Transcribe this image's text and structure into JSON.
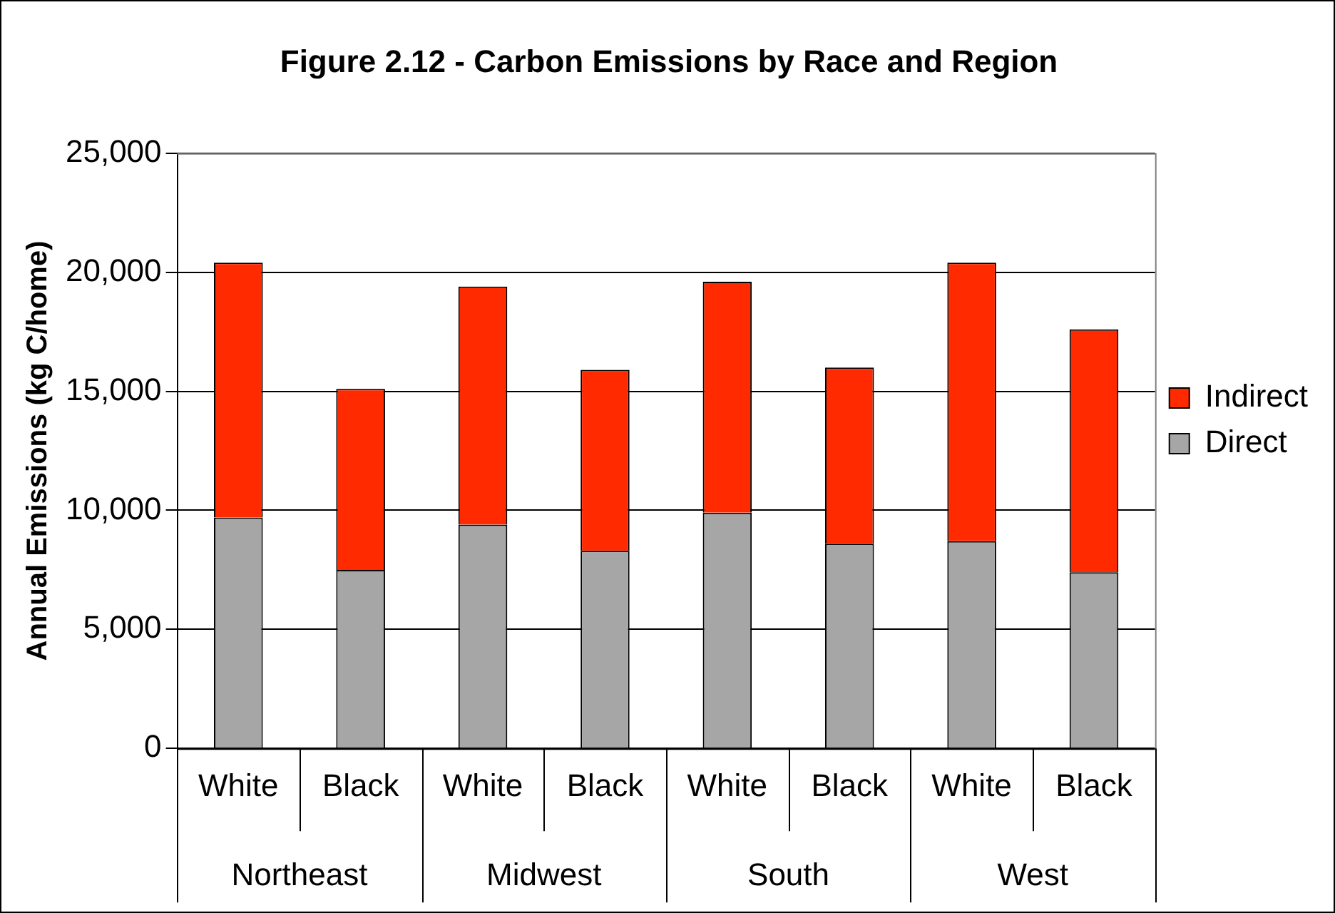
{
  "chart_data": {
    "type": "bar",
    "title": "Figure 2.12 - Carbon Emissions by Race and Region",
    "ylabel": "Annual Emissions (kg C/home)",
    "categories": [
      "White",
      "Black",
      "White",
      "Black",
      "White",
      "Black",
      "White",
      "Black"
    ],
    "annotations": [
      "Northeast",
      "Midwest",
      "South",
      "West"
    ],
    "stacked": true,
    "series": [
      {
        "name": "Direct",
        "color": "#a6a6a6",
        "values": [
          9700,
          7500,
          9400,
          8300,
          9900,
          8600,
          8700,
          7400
        ]
      },
      {
        "name": "Indirect",
        "color": "#ff2a00",
        "values": [
          10700,
          7600,
          10000,
          7600,
          9700,
          7400,
          11700,
          10200
        ]
      }
    ],
    "ylim": [
      0,
      25000
    ],
    "yticks": [
      0,
      {
        "value": 5000,
        "label": "5,000"
      },
      {
        "value": 10000,
        "label": "10,000"
      },
      {
        "value": 15000,
        "label": "15,000"
      },
      {
        "value": 20000,
        "label": "20,000"
      },
      {
        "value": 25000,
        "label": "25,000"
      }
    ],
    "grid": "y",
    "legend": "right"
  }
}
